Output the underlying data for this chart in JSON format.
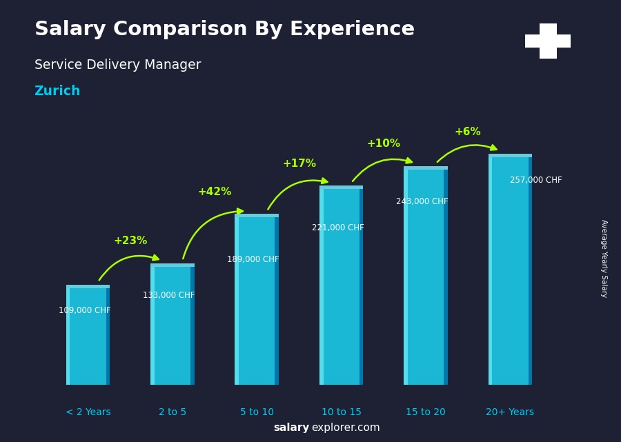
{
  "title": "Salary Comparison By Experience",
  "subtitle": "Service Delivery Manager",
  "city": "Zurich",
  "categories": [
    "< 2 Years",
    "2 to 5",
    "5 to 10",
    "10 to 15",
    "15 to 20",
    "20+ Years"
  ],
  "values": [
    109000,
    133000,
    189000,
    221000,
    243000,
    257000
  ],
  "value_labels": [
    "109,000 CHF",
    "133,000 CHF",
    "189,000 CHF",
    "221,000 CHF",
    "243,000 CHF",
    "257,000 CHF"
  ],
  "pct_changes": [
    null,
    "+23%",
    "+42%",
    "+17%",
    "+10%",
    "+6%"
  ],
  "bar_color_main": "#1ab8d4",
  "bar_color_left": "#55ddee",
  "bar_color_right": "#0077aa",
  "bar_color_top": "#66ccdd",
  "bg_color": "#1e2133",
  "title_color": "#ffffff",
  "subtitle_color": "#ffffff",
  "city_color": "#00ccee",
  "value_color": "#ffffff",
  "pct_color": "#aaff00",
  "xlabel_color": "#00ccee",
  "footer_salary_color": "#ffffff",
  "footer_explorer_color": "#ffffff",
  "ylabel_text": "Average Yearly Salary",
  "flag_bg": "#ee1111",
  "flag_cross": "#ffffff",
  "max_val": 290000
}
